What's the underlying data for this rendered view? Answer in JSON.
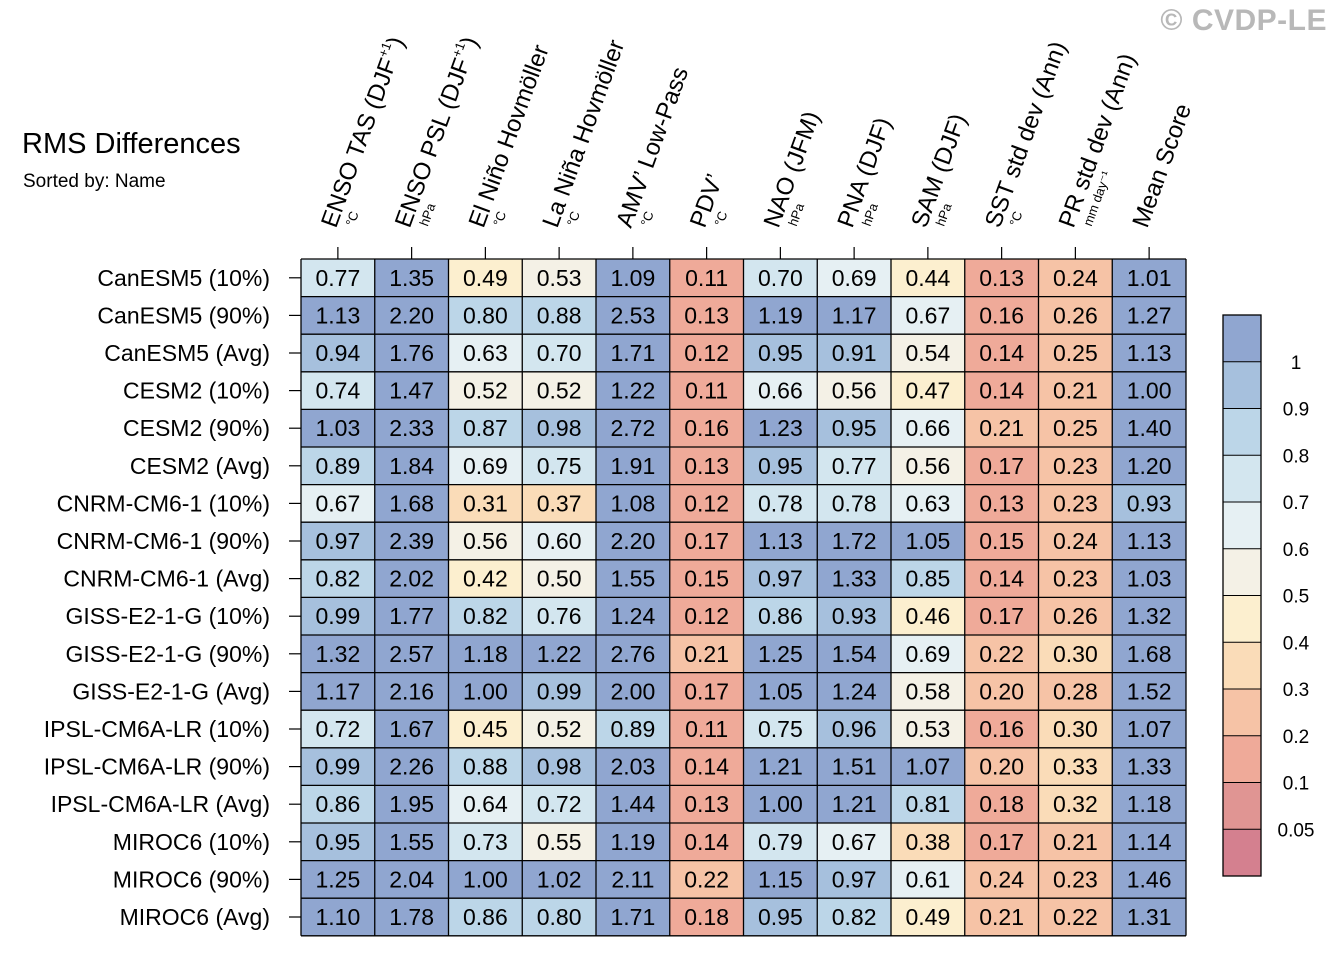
{
  "watermark": "© CVDP-LE",
  "title": "RMS Differences",
  "subtitle": "Sorted by: Name",
  "colors": {
    "grid_line": "#000000",
    "palette": [
      "#d4808f",
      "#e09593",
      "#efaa99",
      "#f6c3a6",
      "#fadcb8",
      "#fcefcf",
      "#f4f1e6",
      "#e6f0f3",
      "#d3e6ef",
      "#bcd6e8",
      "#a6c0dd",
      "#90a6d0"
    ]
  },
  "chart_data": {
    "type": "heatmap",
    "title": "RMS Differences",
    "subtitle": "Sorted by: Name",
    "columns": [
      {
        "label": "ENSO TAS (DJF",
        "sup": "+1",
        "close": ")",
        "unit": "°C"
      },
      {
        "label": "ENSO PSL (DJF",
        "sup": "+1",
        "close": ")",
        "unit": "hPa"
      },
      {
        "label": "El Niño Hovmöller",
        "sup": "",
        "close": "",
        "unit": "°C"
      },
      {
        "label": "La Niña Hovmöller",
        "sup": "",
        "close": "",
        "unit": "°C"
      },
      {
        "label": "AMV’ Low-Pass",
        "sup": "",
        "close": "",
        "unit": "°C"
      },
      {
        "label": "PDV’",
        "sup": "",
        "close": "",
        "unit": "°C"
      },
      {
        "label": "NAO (JFM)",
        "sup": "",
        "close": "",
        "unit": "hPa"
      },
      {
        "label": "PNA (DJF)",
        "sup": "",
        "close": "",
        "unit": "hPa"
      },
      {
        "label": "SAM (DJF)",
        "sup": "",
        "close": "",
        "unit": "hPa"
      },
      {
        "label": "SST std dev (Ann)",
        "sup": "",
        "close": "",
        "unit": "°C"
      },
      {
        "label": "PR std dev (Ann)",
        "sup": "",
        "close": "",
        "unit": "mm day⁻¹"
      },
      {
        "label": "Mean Score",
        "sup": "",
        "close": "",
        "unit": ""
      }
    ],
    "rows": [
      "CanESM5 (10%)",
      "CanESM5 (90%)",
      "CanESM5 (Avg)",
      "CESM2 (10%)",
      "CESM2 (90%)",
      "CESM2 (Avg)",
      "CNRM-CM6-1 (10%)",
      "CNRM-CM6-1 (90%)",
      "CNRM-CM6-1 (Avg)",
      "GISS-E2-1-G (10%)",
      "GISS-E2-1-G (90%)",
      "GISS-E2-1-G (Avg)",
      "IPSL-CM6A-LR (10%)",
      "IPSL-CM6A-LR (90%)",
      "IPSL-CM6A-LR (Avg)",
      "MIROC6 (10%)",
      "MIROC6 (90%)",
      "MIROC6 (Avg)"
    ],
    "values": [
      [
        "0.77",
        "1.35",
        "0.49",
        "0.53",
        "1.09",
        "0.11",
        "0.70",
        "0.69",
        "0.44",
        "0.13",
        "0.24",
        "1.01"
      ],
      [
        "1.13",
        "2.20",
        "0.80",
        "0.88",
        "2.53",
        "0.13",
        "1.19",
        "1.17",
        "0.67",
        "0.16",
        "0.26",
        "1.27"
      ],
      [
        "0.94",
        "1.76",
        "0.63",
        "0.70",
        "1.71",
        "0.12",
        "0.95",
        "0.91",
        "0.54",
        "0.14",
        "0.25",
        "1.13"
      ],
      [
        "0.74",
        "1.47",
        "0.52",
        "0.52",
        "1.22",
        "0.11",
        "0.66",
        "0.56",
        "0.47",
        "0.14",
        "0.21",
        "1.00"
      ],
      [
        "1.03",
        "2.33",
        "0.87",
        "0.98",
        "2.72",
        "0.16",
        "1.23",
        "0.95",
        "0.66",
        "0.21",
        "0.25",
        "1.40"
      ],
      [
        "0.89",
        "1.84",
        "0.69",
        "0.75",
        "1.91",
        "0.13",
        "0.95",
        "0.77",
        "0.56",
        "0.17",
        "0.23",
        "1.20"
      ],
      [
        "0.67",
        "1.68",
        "0.31",
        "0.37",
        "1.08",
        "0.12",
        "0.78",
        "0.78",
        "0.63",
        "0.13",
        "0.23",
        "0.93"
      ],
      [
        "0.97",
        "2.39",
        "0.56",
        "0.60",
        "2.20",
        "0.17",
        "1.13",
        "1.72",
        "1.05",
        "0.15",
        "0.24",
        "1.13"
      ],
      [
        "0.82",
        "2.02",
        "0.42",
        "0.50",
        "1.55",
        "0.15",
        "0.97",
        "1.33",
        "0.85",
        "0.14",
        "0.23",
        "1.03"
      ],
      [
        "0.99",
        "1.77",
        "0.82",
        "0.76",
        "1.24",
        "0.12",
        "0.86",
        "0.93",
        "0.46",
        "0.17",
        "0.26",
        "1.32"
      ],
      [
        "1.32",
        "2.57",
        "1.18",
        "1.22",
        "2.76",
        "0.21",
        "1.25",
        "1.54",
        "0.69",
        "0.22",
        "0.30",
        "1.68"
      ],
      [
        "1.17",
        "2.16",
        "1.00",
        "0.99",
        "2.00",
        "0.17",
        "1.05",
        "1.24",
        "0.58",
        "0.20",
        "0.28",
        "1.52"
      ],
      [
        "0.72",
        "1.67",
        "0.45",
        "0.52",
        "0.89",
        "0.11",
        "0.75",
        "0.96",
        "0.53",
        "0.16",
        "0.30",
        "1.07"
      ],
      [
        "0.99",
        "2.26",
        "0.88",
        "0.98",
        "2.03",
        "0.14",
        "1.21",
        "1.51",
        "1.07",
        "0.20",
        "0.33",
        "1.33"
      ],
      [
        "0.86",
        "1.95",
        "0.64",
        "0.72",
        "1.44",
        "0.13",
        "1.00",
        "1.21",
        "0.81",
        "0.18",
        "0.32",
        "1.18"
      ],
      [
        "0.95",
        "1.55",
        "0.73",
        "0.55",
        "1.19",
        "0.14",
        "0.79",
        "0.67",
        "0.38",
        "0.17",
        "0.21",
        "1.14"
      ],
      [
        "1.25",
        "2.04",
        "1.00",
        "1.02",
        "2.11",
        "0.22",
        "1.15",
        "0.97",
        "0.61",
        "0.24",
        "0.23",
        "1.46"
      ],
      [
        "1.10",
        "1.78",
        "0.86",
        "0.80",
        "1.71",
        "0.18",
        "0.95",
        "0.82",
        "0.49",
        "0.21",
        "0.22",
        "1.31"
      ]
    ],
    "colorbar": {
      "levels": [
        0.05,
        0.1,
        0.2,
        0.3,
        0.4,
        0.5,
        0.6,
        0.7,
        0.8,
        0.9,
        1
      ],
      "labels": [
        "0.05",
        "0.1",
        "0.2",
        "0.3",
        "0.4",
        "0.5",
        "0.6",
        "0.7",
        "0.8",
        "0.9",
        "1"
      ]
    }
  }
}
